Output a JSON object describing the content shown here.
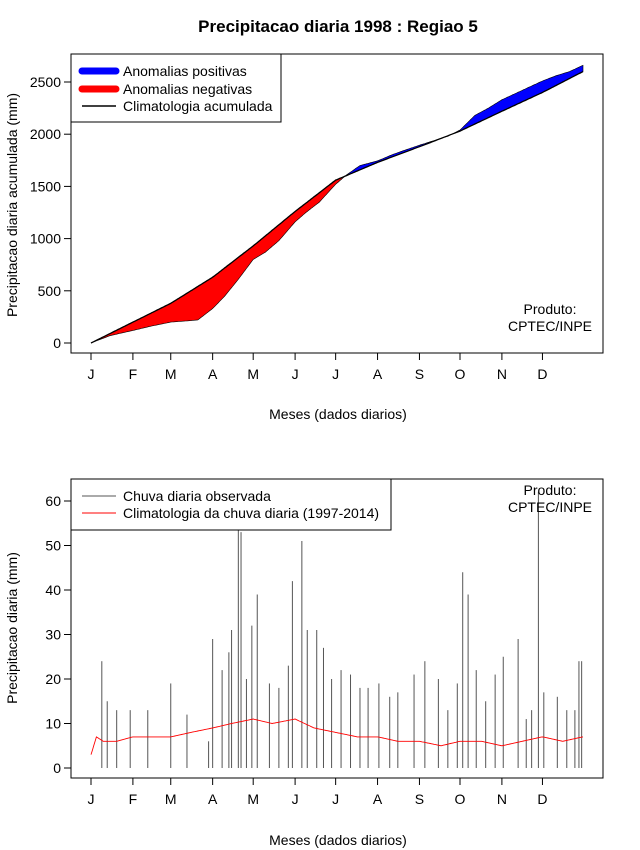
{
  "title": "Precipitacao diaria 1998 : Regiao 5",
  "colors": {
    "positive": "#0000ff",
    "negative": "#ff0000",
    "climatology_line": "#000000",
    "observed_bars": "#555555",
    "daily_climatology": "#ff0000"
  },
  "chart_data": [
    {
      "type": "area",
      "title": "Precipitacao diaria 1998 : Regiao 5",
      "xlabel": "Meses (dados diarios)",
      "ylabel": "Precipitacao diaria acumulada (mm)",
      "xlim": [
        1,
        365
      ],
      "ylim": [
        0,
        2700
      ],
      "grid": false,
      "legend_position": "top-left",
      "x_ticks": [
        {
          "day": 1,
          "label": "J"
        },
        {
          "day": 32,
          "label": "F"
        },
        {
          "day": 60,
          "label": "M"
        },
        {
          "day": 91,
          "label": "A"
        },
        {
          "day": 121,
          "label": "M"
        },
        {
          "day": 152,
          "label": "J"
        },
        {
          "day": 182,
          "label": "J"
        },
        {
          "day": 213,
          "label": "A"
        },
        {
          "day": 244,
          "label": "S"
        },
        {
          "day": 274,
          "label": "O"
        },
        {
          "day": 305,
          "label": "N"
        },
        {
          "day": 335,
          "label": "D"
        }
      ],
      "y_ticks": [
        0,
        500,
        1000,
        1500,
        2000,
        2500
      ],
      "legend": [
        "Anomalias positivas",
        "Anomalias negativas",
        "Climatologia acumulada"
      ],
      "annotation": [
        "Produto:",
        "CPTEC/INPE"
      ],
      "climatology_accumulated": {
        "day": [
          1,
          32,
          60,
          91,
          121,
          152,
          182,
          213,
          244,
          274,
          305,
          335,
          365
        ],
        "value": [
          0,
          200,
          380,
          630,
          930,
          1260,
          1560,
          1730,
          1880,
          2030,
          2220,
          2400,
          2600
        ]
      },
      "observed_accumulated": {
        "day": [
          1,
          15,
          32,
          45,
          60,
          70,
          80,
          91,
          100,
          110,
          121,
          130,
          140,
          152,
          160,
          170,
          182,
          190,
          200,
          213,
          225,
          235,
          244,
          255,
          265,
          274,
          285,
          295,
          305,
          315,
          325,
          335,
          345,
          355,
          365
        ],
        "value": [
          0,
          70,
          120,
          160,
          200,
          210,
          220,
          330,
          450,
          610,
          800,
          870,
          980,
          1160,
          1250,
          1350,
          1520,
          1610,
          1700,
          1745,
          1810,
          1855,
          1895,
          1940,
          1980,
          2040,
          2180,
          2250,
          2330,
          2390,
          2450,
          2510,
          2560,
          2600,
          2660
        ]
      }
    },
    {
      "type": "bar",
      "xlabel": "Meses (dados diarios)",
      "ylabel": "Precipitacao diaria (mm)",
      "xlim": [
        1,
        365
      ],
      "ylim": [
        0,
        63
      ],
      "grid": false,
      "legend_position": "top-left",
      "x_ticks": [
        {
          "day": 1,
          "label": "J"
        },
        {
          "day": 32,
          "label": "F"
        },
        {
          "day": 60,
          "label": "M"
        },
        {
          "day": 91,
          "label": "A"
        },
        {
          "day": 121,
          "label": "M"
        },
        {
          "day": 152,
          "label": "J"
        },
        {
          "day": 182,
          "label": "J"
        },
        {
          "day": 213,
          "label": "A"
        },
        {
          "day": 244,
          "label": "S"
        },
        {
          "day": 274,
          "label": "O"
        },
        {
          "day": 305,
          "label": "N"
        },
        {
          "day": 335,
          "label": "D"
        }
      ],
      "y_ticks": [
        0,
        10,
        20,
        30,
        40,
        50,
        60
      ],
      "legend": [
        "Chuva diaria observada",
        "Climatologia da chuva diaria (1997-2014)"
      ],
      "annotation": [
        "Produto:",
        "CPTEC/INPE"
      ],
      "series": [
        {
          "name": "Chuva diaria observada",
          "style": "bars",
          "peaks": [
            {
              "day": 9,
              "value": 24
            },
            {
              "day": 13,
              "value": 15
            },
            {
              "day": 20,
              "value": 13
            },
            {
              "day": 30,
              "value": 13
            },
            {
              "day": 43,
              "value": 13
            },
            {
              "day": 60,
              "value": 19
            },
            {
              "day": 72,
              "value": 12
            },
            {
              "day": 88,
              "value": 6
            },
            {
              "day": 91,
              "value": 29
            },
            {
              "day": 98,
              "value": 22
            },
            {
              "day": 103,
              "value": 26
            },
            {
              "day": 105,
              "value": 31
            },
            {
              "day": 110,
              "value": 56
            },
            {
              "day": 112,
              "value": 53
            },
            {
              "day": 116,
              "value": 20
            },
            {
              "day": 120,
              "value": 32
            },
            {
              "day": 124,
              "value": 39
            },
            {
              "day": 133,
              "value": 19
            },
            {
              "day": 140,
              "value": 18
            },
            {
              "day": 147,
              "value": 23
            },
            {
              "day": 150,
              "value": 42
            },
            {
              "day": 157,
              "value": 51
            },
            {
              "day": 161,
              "value": 31
            },
            {
              "day": 168,
              "value": 31
            },
            {
              "day": 173,
              "value": 27
            },
            {
              "day": 179,
              "value": 20
            },
            {
              "day": 186,
              "value": 22
            },
            {
              "day": 193,
              "value": 21
            },
            {
              "day": 200,
              "value": 18
            },
            {
              "day": 206,
              "value": 18
            },
            {
              "day": 214,
              "value": 19
            },
            {
              "day": 222,
              "value": 16
            },
            {
              "day": 228,
              "value": 17
            },
            {
              "day": 240,
              "value": 21
            },
            {
              "day": 248,
              "value": 24
            },
            {
              "day": 258,
              "value": 20
            },
            {
              "day": 265,
              "value": 13
            },
            {
              "day": 272,
              "value": 19
            },
            {
              "day": 276,
              "value": 44
            },
            {
              "day": 280,
              "value": 39
            },
            {
              "day": 286,
              "value": 22
            },
            {
              "day": 293,
              "value": 15
            },
            {
              "day": 300,
              "value": 21
            },
            {
              "day": 306,
              "value": 25
            },
            {
              "day": 317,
              "value": 29
            },
            {
              "day": 323,
              "value": 11
            },
            {
              "day": 327,
              "value": 13
            },
            {
              "day": 332,
              "value": 62
            },
            {
              "day": 336,
              "value": 17
            },
            {
              "day": 346,
              "value": 16
            },
            {
              "day": 353,
              "value": 13
            },
            {
              "day": 359,
              "value": 13
            },
            {
              "day": 362,
              "value": 24
            },
            {
              "day": 364,
              "value": 24
            }
          ]
        },
        {
          "name": "Climatologia da chuva diaria (1997-2014)",
          "style": "line",
          "day": [
            1,
            5,
            10,
            20,
            32,
            45,
            60,
            75,
            91,
            105,
            121,
            135,
            152,
            166,
            182,
            198,
            213,
            228,
            244,
            260,
            274,
            290,
            305,
            320,
            335,
            350,
            365
          ],
          "value": [
            3,
            7,
            6,
            6,
            7,
            7,
            7,
            8,
            9,
            10,
            11,
            10,
            11,
            9,
            8,
            7,
            7,
            6,
            6,
            5,
            6,
            6,
            5,
            6,
            7,
            6,
            7
          ]
        }
      ]
    }
  ]
}
